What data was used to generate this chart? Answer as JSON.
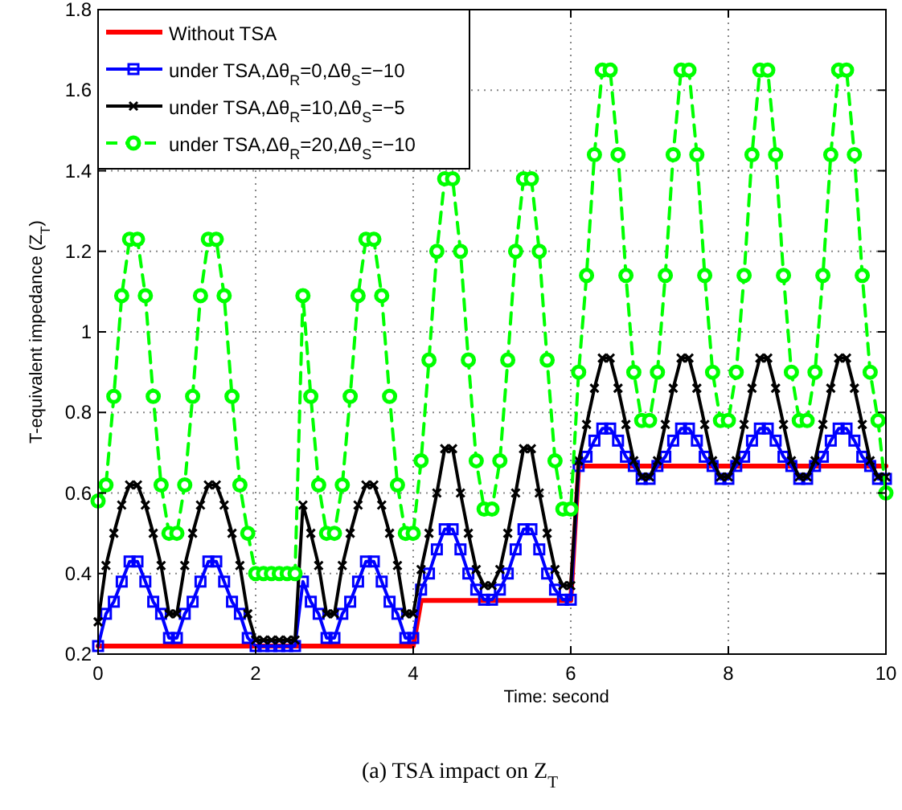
{
  "chart_data": {
    "type": "line",
    "xlabel": "Time: second",
    "ylabel": "T-equivalent impedance (Z$_{T}$)",
    "annotations": [
      "(a) TSA impact on Z$_{T}$"
    ],
    "x": [
      0,
      0.1,
      0.2,
      0.3,
      0.4,
      0.5,
      0.6,
      0.7,
      0.8,
      0.9,
      1,
      1.1,
      1.2,
      1.3,
      1.4,
      1.5,
      1.6,
      1.7,
      1.8,
      1.9,
      2,
      2.1,
      2.2,
      2.3,
      2.4,
      2.5,
      2.6,
      2.7,
      2.8,
      2.9,
      3,
      3.1,
      3.2,
      3.3,
      3.4,
      3.5,
      3.6,
      3.7,
      3.8,
      3.9,
      4,
      4.1,
      4.2,
      4.3,
      4.4,
      4.5,
      4.6,
      4.7,
      4.8,
      4.9,
      5,
      5.1,
      5.2,
      5.3,
      5.4,
      5.5,
      5.6,
      5.7,
      5.8,
      5.9,
      6,
      6.1,
      6.2,
      6.3,
      6.4,
      6.5,
      6.6,
      6.7,
      6.8,
      6.9,
      7,
      7.1,
      7.2,
      7.3,
      7.4,
      7.5,
      7.6,
      7.7,
      7.8,
      7.9,
      8,
      8.1,
      8.2,
      8.3,
      8.4,
      8.5,
      8.6,
      8.7,
      8.8,
      8.9,
      9,
      9.1,
      9.2,
      9.3,
      9.4,
      9.5,
      9.6,
      9.7,
      9.8,
      9.9,
      10
    ],
    "series": [
      {
        "name": "Without TSA",
        "color": "#ff0000",
        "marker": "none",
        "line_style": "solid",
        "x": [
          0,
          4,
          4.1,
          6,
          6.1,
          10
        ],
        "values": [
          0.22,
          0.22,
          0.333,
          0.333,
          0.667,
          0.667
        ]
      },
      {
        "name": "under TSA,Δθ$_{R}$=0,Δθ$_{S}$=−10",
        "color": "#0000ff",
        "marker": "square",
        "line_style": "solid",
        "values": [
          0.22,
          0.3,
          0.33,
          0.38,
          0.43,
          0.43,
          0.38,
          0.33,
          0.3,
          0.24,
          0.24,
          0.3,
          0.33,
          0.38,
          0.43,
          0.43,
          0.38,
          0.33,
          0.3,
          0.24,
          0.22,
          0.22,
          0.22,
          0.22,
          0.22,
          0.22,
          0.38,
          0.33,
          0.3,
          0.24,
          0.24,
          0.3,
          0.33,
          0.38,
          0.43,
          0.43,
          0.38,
          0.33,
          0.3,
          0.24,
          0.24,
          0.36,
          0.4,
          0.46,
          0.51,
          0.51,
          0.46,
          0.4,
          0.36,
          0.335,
          0.335,
          0.36,
          0.4,
          0.46,
          0.51,
          0.51,
          0.46,
          0.4,
          0.36,
          0.335,
          0.335,
          0.667,
          0.69,
          0.73,
          0.76,
          0.76,
          0.73,
          0.69,
          0.667,
          0.635,
          0.635,
          0.667,
          0.69,
          0.73,
          0.76,
          0.76,
          0.73,
          0.69,
          0.667,
          0.635,
          0.635,
          0.667,
          0.69,
          0.73,
          0.76,
          0.76,
          0.73,
          0.69,
          0.667,
          0.635,
          0.635,
          0.667,
          0.69,
          0.73,
          0.76,
          0.76,
          0.73,
          0.69,
          0.667,
          0.635,
          0.635
        ]
      },
      {
        "name": "under TSA,Δθ$_{R}$=10,Δθ$_{S}$=−5",
        "color": "#000000",
        "marker": "cross",
        "line_style": "solid",
        "values": [
          0.28,
          0.42,
          0.5,
          0.57,
          0.62,
          0.62,
          0.57,
          0.5,
          0.42,
          0.3,
          0.3,
          0.42,
          0.5,
          0.57,
          0.62,
          0.62,
          0.57,
          0.5,
          0.42,
          0.3,
          0.235,
          0.235,
          0.235,
          0.235,
          0.235,
          0.235,
          0.57,
          0.5,
          0.42,
          0.3,
          0.3,
          0.42,
          0.5,
          0.57,
          0.62,
          0.62,
          0.57,
          0.5,
          0.42,
          0.3,
          0.3,
          0.41,
          0.5,
          0.6,
          0.71,
          0.71,
          0.6,
          0.5,
          0.41,
          0.37,
          0.37,
          0.41,
          0.5,
          0.6,
          0.71,
          0.71,
          0.6,
          0.5,
          0.41,
          0.37,
          0.37,
          0.68,
          0.77,
          0.86,
          0.935,
          0.935,
          0.86,
          0.77,
          0.68,
          0.64,
          0.64,
          0.68,
          0.77,
          0.86,
          0.935,
          0.935,
          0.86,
          0.77,
          0.68,
          0.64,
          0.64,
          0.68,
          0.77,
          0.86,
          0.935,
          0.935,
          0.86,
          0.77,
          0.68,
          0.64,
          0.64,
          0.68,
          0.77,
          0.86,
          0.935,
          0.935,
          0.86,
          0.77,
          0.68,
          0.64,
          0.64
        ]
      },
      {
        "name": "under TSA,Δθ$_{R}$=20,Δθ$_{S}$=−10",
        "color": "#00ff00",
        "marker": "circle",
        "line_style": "dashed",
        "values": [
          0.58,
          0.62,
          0.84,
          1.09,
          1.23,
          1.23,
          1.09,
          0.84,
          0.62,
          0.5,
          0.5,
          0.62,
          0.84,
          1.09,
          1.23,
          1.23,
          1.09,
          0.84,
          0.62,
          0.5,
          0.4,
          0.4,
          0.4,
          0.4,
          0.4,
          0.4,
          1.09,
          0.84,
          0.62,
          0.5,
          0.5,
          0.62,
          0.84,
          1.09,
          1.23,
          1.23,
          1.09,
          0.84,
          0.62,
          0.5,
          0.5,
          0.68,
          0.93,
          1.2,
          1.38,
          1.38,
          1.2,
          0.93,
          0.68,
          0.56,
          0.56,
          0.68,
          0.93,
          1.2,
          1.38,
          1.38,
          1.2,
          0.93,
          0.68,
          0.56,
          0.56,
          0.9,
          1.14,
          1.44,
          1.65,
          1.65,
          1.44,
          1.14,
          0.9,
          0.78,
          0.78,
          0.9,
          1.14,
          1.44,
          1.65,
          1.65,
          1.44,
          1.14,
          0.9,
          0.78,
          0.78,
          0.9,
          1.14,
          1.44,
          1.65,
          1.65,
          1.44,
          1.14,
          0.9,
          0.78,
          0.78,
          0.9,
          1.14,
          1.44,
          1.65,
          1.65,
          1.44,
          1.14,
          0.9,
          0.78,
          0.6
        ]
      }
    ],
    "xlim": [
      0,
      10
    ],
    "xticks": [
      0,
      2,
      4,
      6,
      8,
      10
    ],
    "ylim": [
      0.2,
      1.8
    ],
    "yticks": [
      0.2,
      0.4,
      0.6,
      0.8,
      1,
      1.2,
      1.4,
      1.6,
      1.8
    ],
    "grid": true,
    "legend": "top left"
  }
}
